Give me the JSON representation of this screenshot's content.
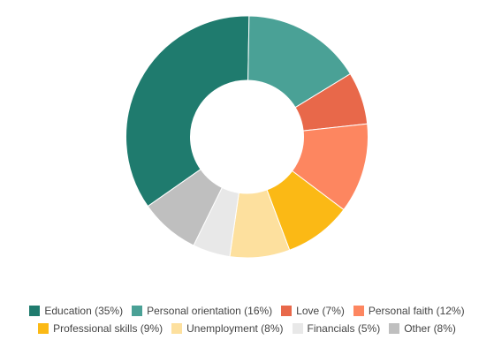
{
  "chart_data": {
    "type": "pie",
    "donut": true,
    "slices": [
      {
        "label": "Education (35%)",
        "value": 35,
        "color": "#1f7b6e"
      },
      {
        "label": "Personal orientation (16%)",
        "value": 16,
        "color": "#4aa196"
      },
      {
        "label": "Love (7%)",
        "value": 7,
        "color": "#e8684a"
      },
      {
        "label": "Personal faith (12%)",
        "value": 12,
        "color": "#fd8660"
      },
      {
        "label": "Professional skills (9%)",
        "value": 9,
        "color": "#fbb915"
      },
      {
        "label": "Unemployment (8%)",
        "value": 8,
        "color": "#fde09e"
      },
      {
        "label": "Financials (5%)",
        "value": 5,
        "color": "#e8e8e8"
      },
      {
        "label": "Other (8%)",
        "value": 8,
        "color": "#bfbfbf"
      }
    ],
    "legend_position": "bottom"
  }
}
